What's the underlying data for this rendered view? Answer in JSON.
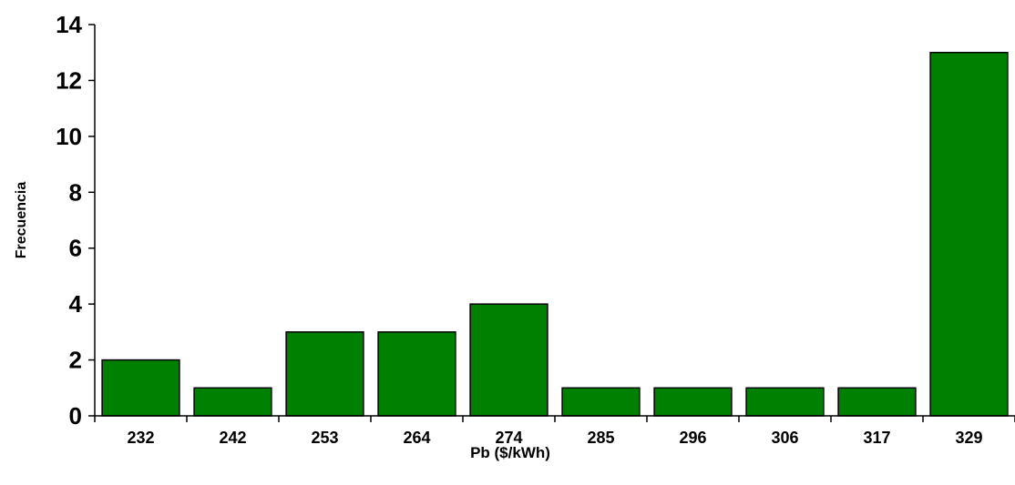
{
  "chart_data": {
    "type": "bar",
    "title": "",
    "xlabel": "Pb ($/kWh)",
    "ylabel": "Frecuencia",
    "categories": [
      "232",
      "242",
      "253",
      "264",
      "274",
      "285",
      "296",
      "306",
      "317",
      "329"
    ],
    "values": [
      2,
      1,
      3,
      3,
      4,
      1,
      1,
      1,
      1,
      13
    ],
    "ylim": [
      0,
      14
    ],
    "yticks": [
      "0",
      "2",
      "4",
      "6",
      "8",
      "10",
      "12",
      "14"
    ],
    "grid": false,
    "legend": "none",
    "bar_color": "#008000",
    "bar_edge_color": "#000000"
  }
}
